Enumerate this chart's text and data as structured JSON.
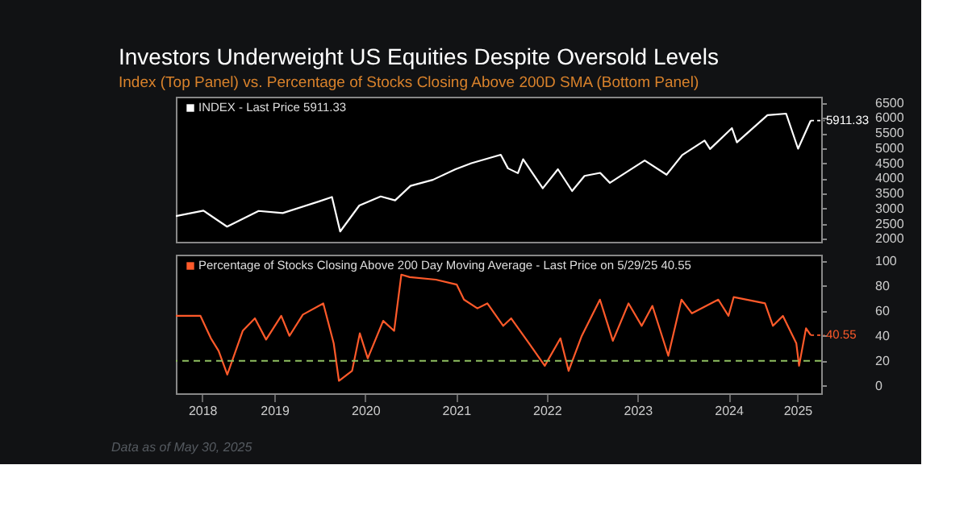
{
  "chart_data": [
    {
      "type": "line",
      "title": "Investors Underweight US Equities Despite Oversold Levels",
      "subtitle": "Index (Top Panel) vs. Percentage of Stocks Closing Above 200D SMA (Bottom Panel)",
      "legend": "top left",
      "tick_labels": "y",
      "xlim": [
        "2018-06-01",
        "2025-07-10"
      ],
      "ylim": [
        1900,
        6700
      ],
      "yticks": [
        2000,
        2500,
        3000,
        3500,
        4000,
        4500,
        5000,
        5500,
        6000,
        6500
      ],
      "series": [
        {
          "name": "INDEX - Last Price 5911.33",
          "color": "#ffffff",
          "x": [
            "2018-06-01",
            "2018-09-20",
            "2018-12-24",
            "2019-04-30",
            "2019-08-05",
            "2019-12-27",
            "2020-02-19",
            "2020-03-23",
            "2020-06-08",
            "2020-09-02",
            "2020-10-30",
            "2020-12-31",
            "2021-03-31",
            "2021-06-30",
            "2021-09-02",
            "2021-12-29",
            "2022-01-27",
            "2022-03-08",
            "2022-03-29",
            "2022-06-16",
            "2022-08-16",
            "2022-10-12",
            "2022-12-01",
            "2023-02-02",
            "2023-03-13",
            "2023-07-31",
            "2023-10-27",
            "2023-12-29",
            "2024-03-28",
            "2024-04-19",
            "2024-07-16",
            "2024-08-05",
            "2024-12-06",
            "2025-02-19",
            "2025-04-08",
            "2025-05-29"
          ],
          "values": [
            2750,
            2930,
            2400,
            2920,
            2850,
            3230,
            3380,
            2240,
            3100,
            3400,
            3270,
            3750,
            3950,
            4300,
            4500,
            4780,
            4330,
            4170,
            4630,
            3670,
            4300,
            3580,
            4080,
            4180,
            3850,
            4590,
            4120,
            4770,
            5250,
            4970,
            5660,
            5190,
            6090,
            6140,
            4980,
            5911.33
          ]
        }
      ],
      "annotations": [
        {
          "text": "5911.33",
          "x": "2025-05-29",
          "y": 5911.33
        }
      ]
    },
    {
      "type": "line",
      "legend": "top left",
      "xlim": [
        "2018-06-01",
        "2025-07-10"
      ],
      "ylim": [
        -6,
        105
      ],
      "yticks": [
        0,
        20,
        40,
        60,
        80,
        100
      ],
      "xticks": [
        {
          "value": "2018-09-15",
          "label": "2018"
        },
        {
          "value": "2019-07-02",
          "label": "2019"
        },
        {
          "value": "2020-07-02",
          "label": "2020"
        },
        {
          "value": "2021-07-02",
          "label": "2021"
        },
        {
          "value": "2022-07-02",
          "label": "2022"
        },
        {
          "value": "2023-07-02",
          "label": "2023"
        },
        {
          "value": "2024-07-02",
          "label": "2024"
        },
        {
          "value": "2025-04-05",
          "label": "2025"
        }
      ],
      "ref_lines": [
        {
          "axis": "y",
          "value": 20,
          "color": "#8fbf60",
          "line_style": "dashed"
        }
      ],
      "series": [
        {
          "name": "Percentage of Stocks Closing Above 200 Day Moving Average - Last Price on 5/29/25 40.55",
          "color": "#ff5a2a",
          "x": [
            "2018-06-01",
            "2018-09-08",
            "2018-10-20",
            "2018-11-20",
            "2018-12-25",
            "2019-02-25",
            "2019-04-15",
            "2019-05-30",
            "2019-07-30",
            "2019-09-01",
            "2019-10-25",
            "2020-01-15",
            "2020-02-26",
            "2020-03-18",
            "2020-05-10",
            "2020-06-10",
            "2020-07-12",
            "2020-09-12",
            "2020-10-26",
            "2020-11-24",
            "2020-12-28",
            "2021-04-12",
            "2021-07-05",
            "2021-08-03",
            "2021-09-26",
            "2021-11-05",
            "2022-01-08",
            "2022-02-09",
            "2022-04-22",
            "2022-06-24",
            "2022-08-26",
            "2022-09-28",
            "2022-11-20",
            "2023-02-01",
            "2023-03-25",
            "2023-05-27",
            "2023-07-19",
            "2023-08-31",
            "2023-11-03",
            "2023-12-26",
            "2024-02-06",
            "2024-05-22",
            "2024-07-02",
            "2024-07-23",
            "2024-11-26",
            "2024-12-28",
            "2025-02-06",
            "2025-04-01",
            "2025-04-12",
            "2025-05-10",
            "2025-05-29"
          ],
          "values": [
            56,
            56,
            38,
            28,
            9,
            44,
            54,
            37,
            56,
            40,
            57,
            66,
            34,
            4,
            12,
            42,
            22,
            52,
            44,
            89,
            87,
            85,
            81,
            69,
            62,
            66,
            48,
            54,
            34,
            16,
            38,
            12,
            40,
            69,
            36,
            66,
            48,
            64,
            24,
            69,
            58,
            69,
            56,
            71,
            66,
            48,
            56,
            34,
            16,
            46,
            40.55
          ]
        }
      ],
      "annotations": [
        "Data as of May 30, 2025",
        {
          "text": "40.55",
          "x": "2025-05-29",
          "y": 40.55
        }
      ]
    }
  ]
}
